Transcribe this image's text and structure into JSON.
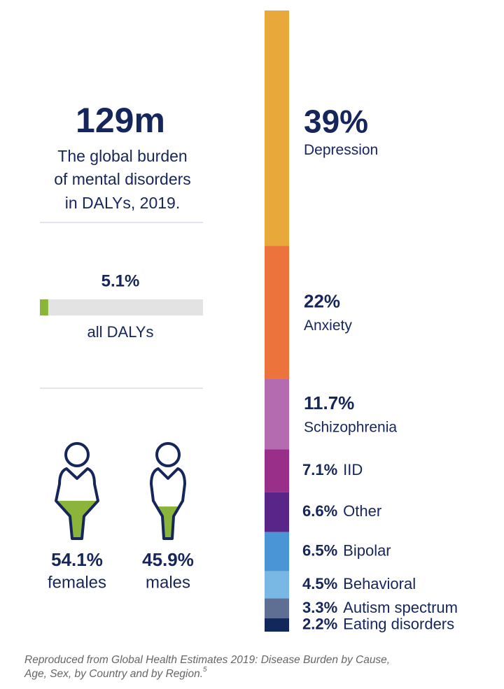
{
  "headline": {
    "value": "129m",
    "lines": [
      "The global burden",
      "of mental disorders",
      "in DALYs, 2019."
    ]
  },
  "share": {
    "value": 5.1,
    "label": "5.1%",
    "caption": "all DALYs",
    "range": [
      0,
      100
    ],
    "color": "#8ab43a",
    "track_color": "#e3e3e3"
  },
  "gender": {
    "range": [
      0,
      100
    ],
    "color": "#8ab43a",
    "items": [
      {
        "value": 54.1,
        "label": "54.1%",
        "name": "females"
      },
      {
        "value": 45.9,
        "label": "45.9%",
        "name": "males"
      }
    ]
  },
  "chart_data": {
    "type": "stacked-bar",
    "categories": [
      "Depression",
      "Anxiety",
      "Schizophrenia",
      "IID",
      "Other",
      "Bipolar",
      "Behavioral",
      "Autism spectrum",
      "Eating disorders"
    ],
    "values": [
      39,
      22,
      11.7,
      7.1,
      6.6,
      6.5,
      4.5,
      3.3,
      2.2
    ],
    "value_labels": [
      "39%",
      "22%",
      "11.7%",
      "7.1%",
      "6.6%",
      "6.5%",
      "4.5%",
      "3.3%",
      "2.2%"
    ],
    "colors": [
      "#e8a83a",
      "#ec743c",
      "#b56bb0",
      "#9a2f8a",
      "#5a2589",
      "#4a95d5",
      "#79b8e4",
      "#5f6f93",
      "#13285a"
    ]
  },
  "footnote": {
    "lines": [
      "Reproduced from Global Health Estimates 2019: Disease Burden by Cause,",
      "Age, Sex, by Country and by Region."
    ],
    "superscript": "5"
  }
}
